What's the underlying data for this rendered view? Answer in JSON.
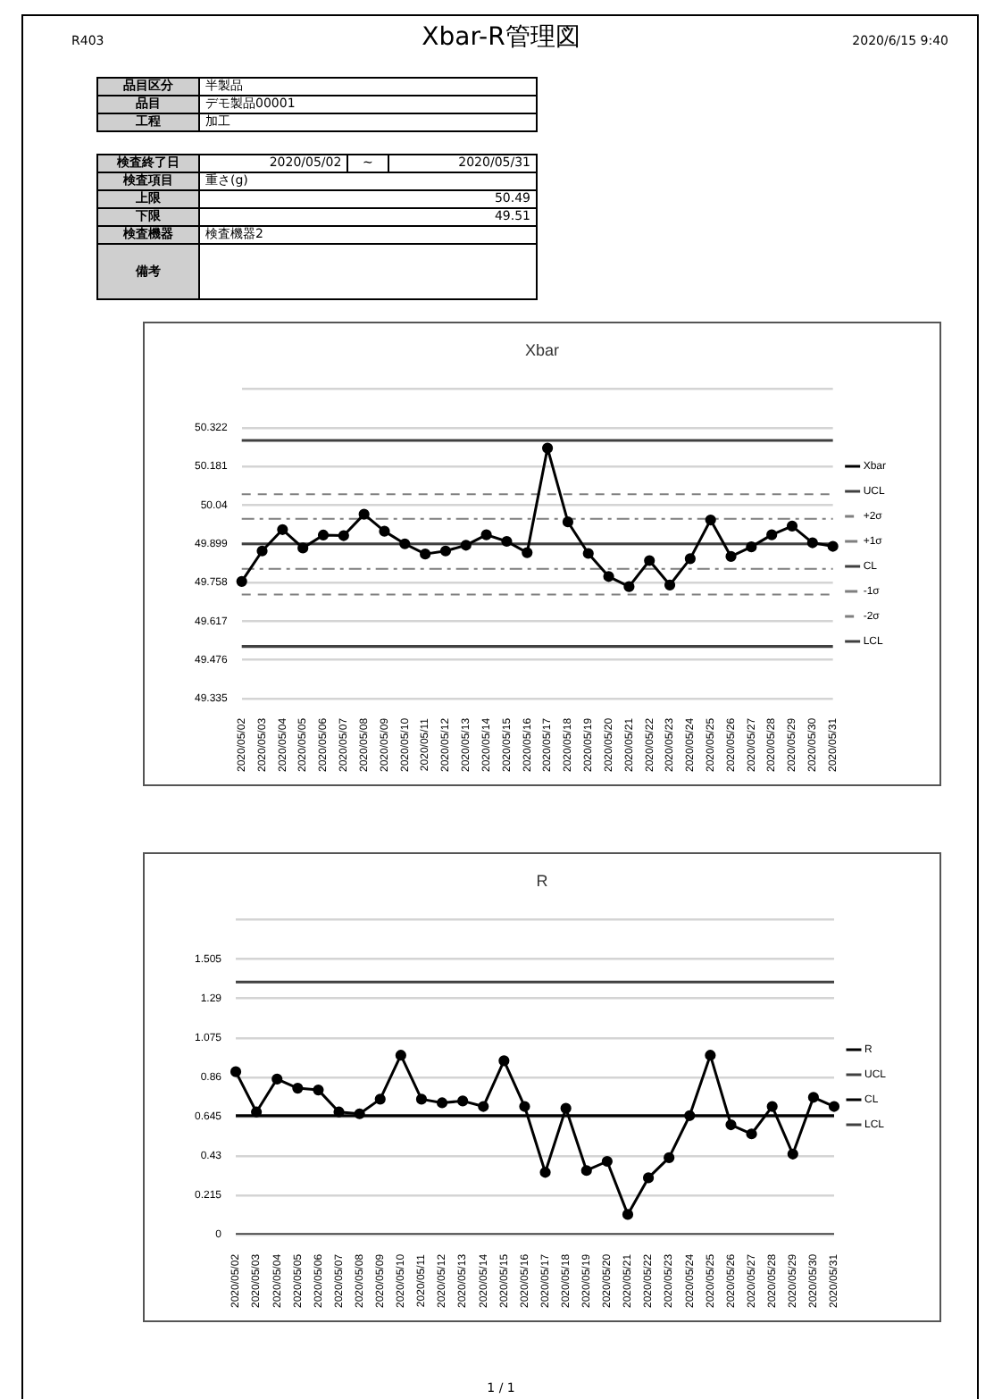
{
  "chart_data": [
    {
      "type": "other",
      "title": "Xbar-R管理図",
      "annotations": [
        "R403",
        "2020/6/15 9:40",
        "品目区分",
        "半製品",
        "品目",
        "デモ製品00001",
        "工程",
        "加工",
        "検査終了日",
        "2020/05/02",
        "~",
        "2020/05/31",
        "検査項目",
        "重さ(g)",
        "上限",
        "50.49",
        "下限",
        "49.51",
        "検査機器",
        "検査機器2",
        "備考",
        "1 / 1"
      ]
    },
    {
      "type": "line",
      "title": "Xbar",
      "categories": [
        "2020/05/02",
        "2020/05/03",
        "2020/05/04",
        "2020/05/05",
        "2020/05/06",
        "2020/05/07",
        "2020/05/08",
        "2020/05/09",
        "2020/05/10",
        "2020/05/11",
        "2020/05/12",
        "2020/05/13",
        "2020/05/14",
        "2020/05/15",
        "2020/05/16",
        "2020/05/17",
        "2020/05/18",
        "2020/05/19",
        "2020/05/20",
        "2020/05/21",
        "2020/05/22",
        "2020/05/23",
        "2020/05/24",
        "2020/05/25",
        "2020/05/26",
        "2020/05/27",
        "2020/05/28",
        "2020/05/29",
        "2020/05/30",
        "2020/05/31"
      ],
      "series": [
        {
          "name": "Xbar",
          "color": "#000000",
          "marker": "circle",
          "line_style": "solid",
          "values": [
            49.762,
            49.873,
            49.951,
            49.884,
            49.931,
            49.929,
            50.007,
            49.945,
            49.899,
            49.862,
            49.873,
            49.894,
            49.932,
            49.908,
            49.867,
            50.248,
            49.979,
            49.864,
            49.78,
            49.743,
            49.838,
            49.749,
            49.845,
            49.986,
            49.853,
            49.888,
            49.932,
            49.964,
            49.903,
            49.89
          ]
        },
        {
          "name": "UCL",
          "color": "#404040",
          "marker": "none",
          "line_style": "solid",
          "values": [
            50.276,
            50.276,
            50.276,
            50.276,
            50.276,
            50.276,
            50.276,
            50.276,
            50.276,
            50.276,
            50.276,
            50.276,
            50.276,
            50.276,
            50.276,
            50.276,
            50.276,
            50.276,
            50.276,
            50.276,
            50.276,
            50.276,
            50.276,
            50.276,
            50.276,
            50.276,
            50.276,
            50.276,
            50.276,
            50.276
          ]
        },
        {
          "name": "+2σ",
          "color": "#7f7f7f",
          "marker": "none",
          "line_style": "dashed",
          "values": [
            50.08,
            50.08,
            50.08,
            50.08,
            50.08,
            50.08,
            50.08,
            50.08,
            50.08,
            50.08,
            50.08,
            50.08,
            50.08,
            50.08,
            50.08,
            50.08,
            50.08,
            50.08,
            50.08,
            50.08,
            50.08,
            50.08,
            50.08,
            50.08,
            50.08,
            50.08,
            50.08,
            50.08,
            50.08,
            50.08
          ]
        },
        {
          "name": "+1σ",
          "color": "#7f7f7f",
          "marker": "none",
          "line_style": "dotted",
          "values": [
            49.99,
            49.99,
            49.99,
            49.99,
            49.99,
            49.99,
            49.99,
            49.99,
            49.99,
            49.99,
            49.99,
            49.99,
            49.99,
            49.99,
            49.99,
            49.99,
            49.99,
            49.99,
            49.99,
            49.99,
            49.99,
            49.99,
            49.99,
            49.99,
            49.99,
            49.99,
            49.99,
            49.99,
            49.99,
            49.99
          ]
        },
        {
          "name": "CL",
          "color": "#404040",
          "marker": "none",
          "line_style": "solid",
          "values": [
            49.899,
            49.899,
            49.899,
            49.899,
            49.899,
            49.899,
            49.899,
            49.899,
            49.899,
            49.899,
            49.899,
            49.899,
            49.899,
            49.899,
            49.899,
            49.899,
            49.899,
            49.899,
            49.899,
            49.899,
            49.899,
            49.899,
            49.899,
            49.899,
            49.899,
            49.899,
            49.899,
            49.899,
            49.899,
            49.899
          ]
        },
        {
          "name": "-1σ",
          "color": "#7f7f7f",
          "marker": "none",
          "line_style": "dotted",
          "values": [
            49.808,
            49.808,
            49.808,
            49.808,
            49.808,
            49.808,
            49.808,
            49.808,
            49.808,
            49.808,
            49.808,
            49.808,
            49.808,
            49.808,
            49.808,
            49.808,
            49.808,
            49.808,
            49.808,
            49.808,
            49.808,
            49.808,
            49.808,
            49.808,
            49.808,
            49.808,
            49.808,
            49.808,
            49.808,
            49.808
          ]
        },
        {
          "name": "-2σ",
          "color": "#7f7f7f",
          "marker": "none",
          "line_style": "dashed",
          "values": [
            49.714,
            49.714,
            49.714,
            49.714,
            49.714,
            49.714,
            49.714,
            49.714,
            49.714,
            49.714,
            49.714,
            49.714,
            49.714,
            49.714,
            49.714,
            49.714,
            49.714,
            49.714,
            49.714,
            49.714,
            49.714,
            49.714,
            49.714,
            49.714,
            49.714,
            49.714,
            49.714,
            49.714,
            49.714,
            49.714
          ]
        },
        {
          "name": "LCL",
          "color": "#404040",
          "marker": "none",
          "line_style": "solid",
          "values": [
            49.525,
            49.525,
            49.525,
            49.525,
            49.525,
            49.525,
            49.525,
            49.525,
            49.525,
            49.525,
            49.525,
            49.525,
            49.525,
            49.525,
            49.525,
            49.525,
            49.525,
            49.525,
            49.525,
            49.525,
            49.525,
            49.525,
            49.525,
            49.525,
            49.525,
            49.525,
            49.525,
            49.525,
            49.525,
            49.525
          ]
        }
      ],
      "ylim": [
        49.335,
        50.463
      ],
      "yticks": [
        49.335,
        49.476,
        49.617,
        49.758,
        49.899,
        50.04,
        50.181,
        50.322,
        {
          "value": 50.463,
          "label": null
        }
      ],
      "grid": "y",
      "legend": "right"
    },
    {
      "type": "line",
      "title": "R",
      "categories": [
        "2020/05/02",
        "2020/05/03",
        "2020/05/04",
        "2020/05/05",
        "2020/05/06",
        "2020/05/07",
        "2020/05/08",
        "2020/05/09",
        "2020/05/10",
        "2020/05/11",
        "2020/05/12",
        "2020/05/13",
        "2020/05/14",
        "2020/05/15",
        "2020/05/16",
        "2020/05/17",
        "2020/05/18",
        "2020/05/19",
        "2020/05/20",
        "2020/05/21",
        "2020/05/22",
        "2020/05/23",
        "2020/05/24",
        "2020/05/25",
        "2020/05/26",
        "2020/05/27",
        "2020/05/28",
        "2020/05/29",
        "2020/05/30",
        "2020/05/31"
      ],
      "series": [
        {
          "name": "R",
          "color": "#000000",
          "marker": "circle",
          "line_style": "solid",
          "values": [
            0.89,
            0.67,
            0.85,
            0.8,
            0.79,
            0.67,
            0.66,
            0.74,
            0.98,
            0.74,
            0.72,
            0.73,
            0.7,
            0.95,
            0.7,
            0.34,
            0.69,
            0.35,
            0.4,
            0.11,
            0.31,
            0.42,
            0.65,
            0.98,
            0.6,
            0.55,
            0.7,
            0.44,
            0.75,
            0.7
          ]
        },
        {
          "name": "UCL",
          "color": "#404040",
          "marker": "none",
          "line_style": "solid",
          "values": [
            1.38,
            1.38,
            1.38,
            1.38,
            1.38,
            1.38,
            1.38,
            1.38,
            1.38,
            1.38,
            1.38,
            1.38,
            1.38,
            1.38,
            1.38,
            1.38,
            1.38,
            1.38,
            1.38,
            1.38,
            1.38,
            1.38,
            1.38,
            1.38,
            1.38,
            1.38,
            1.38,
            1.38,
            1.38,
            1.38
          ]
        },
        {
          "name": "CL",
          "color": "#000000",
          "marker": "none",
          "line_style": "solid",
          "values": [
            0.65,
            0.65,
            0.65,
            0.65,
            0.65,
            0.65,
            0.65,
            0.65,
            0.65,
            0.65,
            0.65,
            0.65,
            0.65,
            0.65,
            0.65,
            0.65,
            0.65,
            0.65,
            0.65,
            0.65,
            0.65,
            0.65,
            0.65,
            0.65,
            0.65,
            0.65,
            0.65,
            0.65,
            0.65,
            0.65
          ]
        },
        {
          "name": "LCL",
          "color": "#404040",
          "marker": "none",
          "line_style": "solid",
          "values": [
            0,
            0,
            0,
            0,
            0,
            0,
            0,
            0,
            0,
            0,
            0,
            0,
            0,
            0,
            0,
            0,
            0,
            0,
            0,
            0,
            0,
            0,
            0,
            0,
            0,
            0,
            0,
            0,
            0,
            0
          ]
        }
      ],
      "ylim": [
        0,
        1.72
      ],
      "yticks": [
        0,
        0.215,
        0.43,
        0.645,
        0.86,
        1.075,
        1.29,
        1.505,
        {
          "value": 1.72,
          "label": null
        }
      ],
      "grid": "y",
      "legend": "right"
    }
  ]
}
